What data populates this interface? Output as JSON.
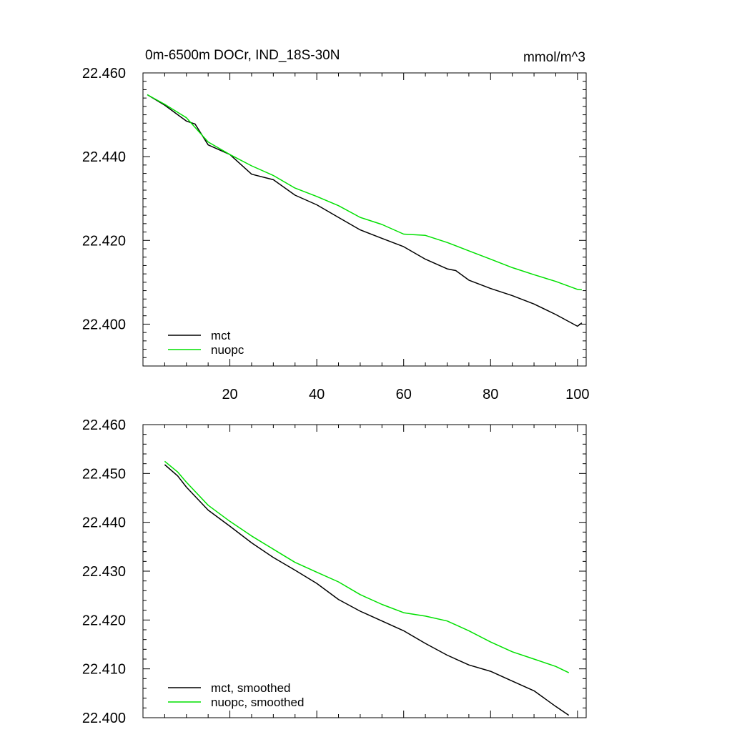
{
  "chart_data": [
    {
      "type": "line",
      "title": "0m-6500m DOCr, IND_18S-30N",
      "units": "mmol/m^3",
      "xlim": [
        0,
        102
      ],
      "ylim": [
        22.39,
        22.46
      ],
      "x_ticks": [
        20,
        40,
        60,
        80,
        100
      ],
      "x_tick_labels": [
        "20",
        "40",
        "60",
        "80",
        "100"
      ],
      "y_ticks": [
        22.46,
        22.44,
        22.42,
        22.4
      ],
      "y_tick_labels": [
        "22.460",
        "22.440",
        "22.420",
        "22.400"
      ],
      "legend_position": "bottom-left",
      "series": [
        {
          "name": "mct",
          "color": "#000000",
          "x": [
            1,
            5,
            10,
            12,
            15,
            20,
            25,
            30,
            35,
            40,
            45,
            50,
            55,
            60,
            65,
            70,
            72,
            75,
            80,
            85,
            90,
            95,
            100,
            101
          ],
          "values": [
            22.4548,
            22.4523,
            22.4485,
            22.4478,
            22.4428,
            22.4405,
            22.4358,
            22.4345,
            22.4308,
            22.4285,
            22.4255,
            22.4225,
            22.4205,
            22.4185,
            22.4155,
            22.4132,
            22.4128,
            22.4105,
            22.4085,
            22.4068,
            22.4048,
            22.4023,
            22.3995,
            22.4003
          ]
        },
        {
          "name": "nuopc",
          "color": "#00e000",
          "x": [
            1,
            5,
            10,
            15,
            20,
            25,
            30,
            35,
            40,
            45,
            50,
            55,
            60,
            65,
            70,
            75,
            80,
            85,
            90,
            95,
            100,
            101
          ],
          "values": [
            22.4548,
            22.4525,
            22.4493,
            22.4435,
            22.4405,
            22.4378,
            22.4355,
            22.4325,
            22.4305,
            22.4283,
            22.4255,
            22.4238,
            22.4215,
            22.4212,
            22.4195,
            22.4175,
            22.4155,
            22.4135,
            22.4118,
            22.4102,
            22.4083,
            22.4082
          ]
        }
      ]
    },
    {
      "type": "line",
      "title": "",
      "xlim": [
        0,
        102
      ],
      "ylim": [
        22.4,
        22.46
      ],
      "x_ticks": [
        20,
        40,
        60,
        80,
        100
      ],
      "y_ticks": [
        22.46,
        22.45,
        22.44,
        22.43,
        22.42,
        22.41,
        22.4
      ],
      "y_tick_labels": [
        "22.460",
        "22.450",
        "22.440",
        "22.430",
        "22.420",
        "22.410",
        "22.400"
      ],
      "legend_position": "bottom-left",
      "series": [
        {
          "name": "mct, smoothed",
          "color": "#000000",
          "x": [
            5,
            8,
            10,
            15,
            20,
            25,
            30,
            35,
            40,
            45,
            50,
            55,
            60,
            65,
            70,
            75,
            80,
            85,
            90,
            95,
            98
          ],
          "values": [
            22.4518,
            22.4495,
            22.4472,
            22.4425,
            22.4392,
            22.4358,
            22.4328,
            22.4302,
            22.4275,
            22.4242,
            22.4218,
            22.4198,
            22.4178,
            22.4152,
            22.4128,
            22.4108,
            22.4095,
            22.4075,
            22.4055,
            22.4023,
            22.4005
          ]
        },
        {
          "name": "nuopc, smoothed",
          "color": "#00e000",
          "x": [
            5,
            8,
            10,
            15,
            20,
            25,
            30,
            35,
            40,
            45,
            50,
            55,
            60,
            65,
            70,
            75,
            80,
            85,
            90,
            95,
            98
          ],
          "values": [
            22.4525,
            22.4503,
            22.4482,
            22.4435,
            22.4402,
            22.4372,
            22.4345,
            22.4318,
            22.4298,
            22.4278,
            22.4252,
            22.4232,
            22.4215,
            22.4208,
            22.4198,
            22.4178,
            22.4155,
            22.4135,
            22.412,
            22.4105,
            22.4092
          ]
        }
      ]
    }
  ]
}
